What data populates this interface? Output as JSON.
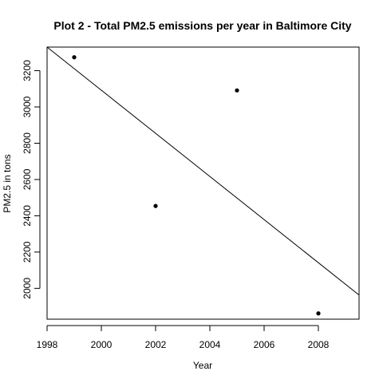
{
  "chart_data": {
    "type": "scatter",
    "title": "Plot 2 - Total PM2.5 emissions per year in Baltimore City",
    "xlabel": "Year",
    "ylabel": "PM2.5 in tons",
    "x": [
      1999,
      2002,
      2005,
      2008
    ],
    "y": [
      3274,
      2454,
      3091,
      1862
    ],
    "xlim": [
      1998,
      2009.5
    ],
    "ylim": [
      1830,
      3330
    ],
    "xticks": [
      1998,
      2000,
      2002,
      2004,
      2006,
      2008
    ],
    "yticks": [
      2000,
      2200,
      2400,
      2600,
      2800,
      3000,
      3200
    ],
    "trendline": {
      "x": [
        1998,
        2009.5
      ],
      "y": [
        3330,
        1963
      ]
    },
    "grid": false,
    "legend": "none",
    "colors": {
      "points": "#000000",
      "line": "#000000",
      "axes": "#000000",
      "background": "#ffffff"
    }
  }
}
